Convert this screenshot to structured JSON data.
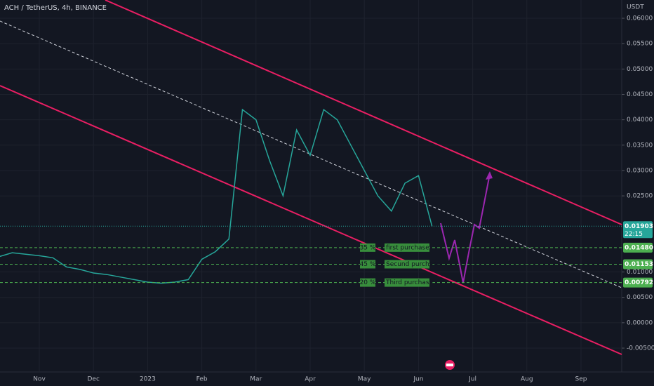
{
  "chart_data": {
    "type": "line",
    "title": "ACH / TetherUS, 4h, BINANCE",
    "y_axis_label": "USDT",
    "categories": [
      null,
      null,
      null,
      "Nov",
      null,
      null,
      null,
      "Dec",
      null,
      null,
      null,
      "2023",
      null,
      null,
      null,
      "Feb",
      null,
      null,
      null,
      "Mar",
      null,
      null,
      null,
      "Apr",
      null,
      null,
      null,
      "May",
      null,
      null,
      null,
      "Jun",
      null,
      null,
      null,
      "Jul",
      null,
      null,
      null,
      "Aug",
      null,
      null,
      null,
      "Sep",
      null,
      null
    ],
    "values": [
      0.013,
      0.0138,
      0.0135,
      0.0132,
      0.0128,
      0.011,
      0.0105,
      0.0098,
      0.0095,
      0.009,
      0.0085,
      0.008,
      0.0078,
      0.008,
      0.0085,
      0.0125,
      0.014,
      0.0165,
      0.042,
      0.04,
      0.032,
      0.025,
      0.038,
      0.033,
      0.042,
      0.04,
      0.035,
      0.03,
      0.025,
      0.022,
      0.0275,
      0.029,
      0.019,
      null,
      null,
      null,
      null,
      null,
      null,
      null,
      null,
      null,
      null,
      null,
      null,
      null
    ],
    "color": "#26a69a",
    "ylim": [
      -0.0097,
      0.0636
    ],
    "yticks": [
      {
        "value": -0.005,
        "label": "-0.00500"
      },
      {
        "value": 0,
        "label": "0.00000"
      },
      {
        "value": 0.005,
        "label": "0.00500"
      },
      {
        "value": 0.01,
        "label": "0.01000"
      },
      {
        "value": 0.025,
        "label": "0.02500"
      },
      {
        "value": 0.03,
        "label": "0.03000"
      },
      {
        "value": 0.035,
        "label": "0.03500"
      },
      {
        "value": 0.04,
        "label": "0.04000"
      },
      {
        "value": 0.045,
        "label": "0.04500"
      },
      {
        "value": 0.05,
        "label": "0.05000"
      },
      {
        "value": 0.055,
        "label": "0.05500"
      },
      {
        "value": 0.06,
        "label": "0.06000"
      }
    ],
    "levels": [
      {
        "value": 0.0148,
        "label": "0.01480",
        "percent": "35 %",
        "name": "first purchase"
      },
      {
        "value": 0.01153,
        "label": "0.01153",
        "percent": "45 %",
        "name": "Secund purchase"
      },
      {
        "value": 0.00792,
        "label": "0.00792",
        "percent": "20 %",
        "name": "Third purchase"
      }
    ],
    "last_price": {
      "value": 0.01903,
      "label": "0.01903",
      "countdown": "22:15"
    }
  }
}
